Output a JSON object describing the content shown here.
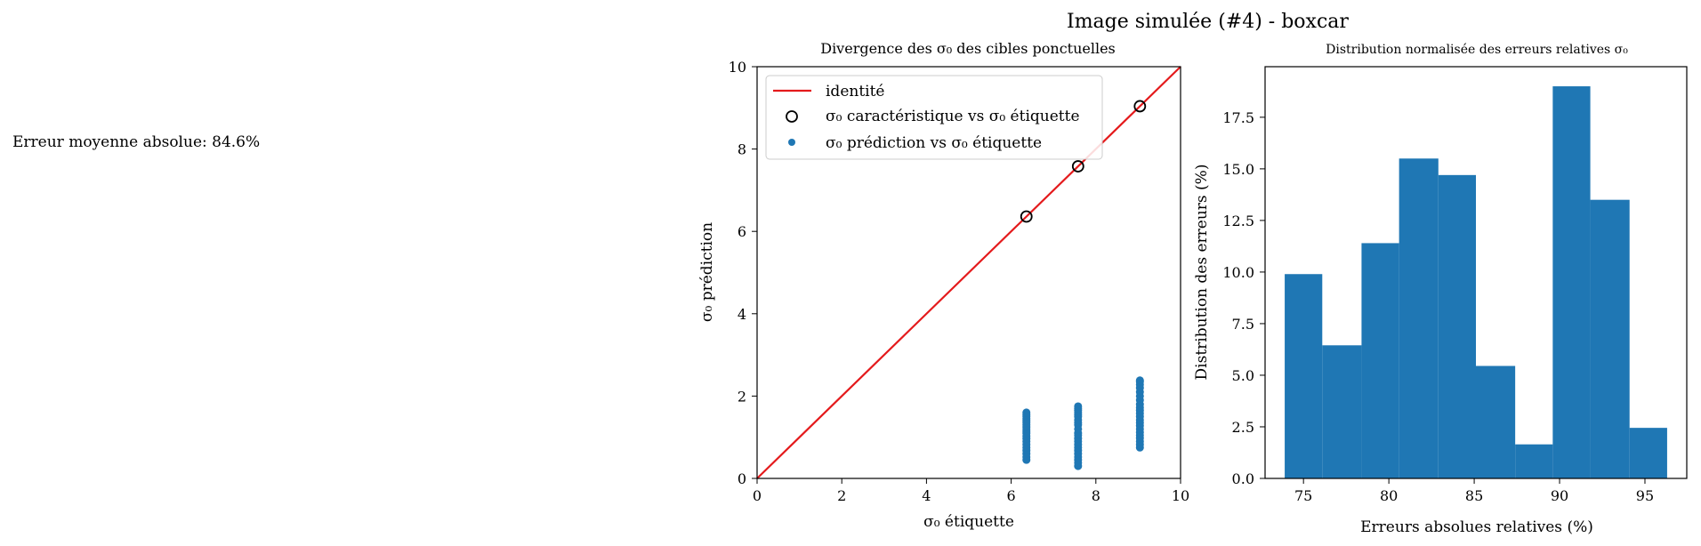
{
  "figure": {
    "suptitle": "Image simulée (#4) - boxcar",
    "mean_abs_error": "Erreur moyenne absolue: 84.6%"
  },
  "chart_data": [
    {
      "type": "scatter",
      "title": "Divergence des σ₀ des cibles ponctuelles",
      "xlabel": "σ₀ étiquette",
      "ylabel": "σ₀ prédiction",
      "xlim": [
        0,
        10
      ],
      "ylim": [
        0,
        10
      ],
      "xticks": [
        "0",
        "2",
        "4",
        "6",
        "8",
        "10"
      ],
      "yticks": [
        "0",
        "2",
        "4",
        "6",
        "8",
        "10"
      ],
      "legend_position": "top-left",
      "identity": {
        "name": "identité",
        "color": "#e41a1c",
        "x": [
          0,
          10
        ],
        "y": [
          0,
          10
        ]
      },
      "characteristic": {
        "name": "σ₀ caractéristique vs σ₀ étiquette",
        "x": [
          6.36,
          7.58,
          9.04
        ],
        "y": [
          6.36,
          7.58,
          9.04
        ]
      },
      "prediction": {
        "name": "σ₀ prédiction vs σ₀ étiquette",
        "color": "#1f77b4",
        "x": [
          6.36,
          6.36,
          6.36,
          6.36,
          6.36,
          6.36,
          6.36,
          6.36,
          6.36,
          6.36,
          6.36,
          6.36,
          6.36,
          6.36,
          6.36,
          6.36,
          6.36,
          6.36,
          6.36,
          6.36,
          7.58,
          7.58,
          7.58,
          7.58,
          7.58,
          7.58,
          7.58,
          7.58,
          7.58,
          7.58,
          7.58,
          7.58,
          7.58,
          7.58,
          7.58,
          7.58,
          7.58,
          7.58,
          7.58,
          7.58,
          7.58,
          7.58,
          9.04,
          9.04,
          9.04,
          9.04,
          9.04,
          9.04,
          9.04,
          9.04,
          9.04,
          9.04,
          9.04,
          9.04,
          9.04,
          9.04,
          9.04,
          9.04,
          9.04,
          9.04,
          9.04,
          9.04,
          9.04,
          9.04
        ],
        "y": [
          0.45,
          0.52,
          0.6,
          0.68,
          0.75,
          0.82,
          0.9,
          0.97,
          1.03,
          1.1,
          1.15,
          1.2,
          1.25,
          1.3,
          1.35,
          1.4,
          1.45,
          1.5,
          1.55,
          1.6,
          0.3,
          0.38,
          0.45,
          0.52,
          0.6,
          0.68,
          0.75,
          0.82,
          0.9,
          0.97,
          1.05,
          1.1,
          1.2,
          1.3,
          1.35,
          1.42,
          1.5,
          1.55,
          1.6,
          1.65,
          1.7,
          1.75,
          0.75,
          0.82,
          0.9,
          0.98,
          1.05,
          1.12,
          1.2,
          1.28,
          1.35,
          1.42,
          1.5,
          1.58,
          1.65,
          1.72,
          1.8,
          1.9,
          2.0,
          2.1,
          2.2,
          2.28,
          2.35,
          2.38
        ]
      }
    },
    {
      "type": "bar",
      "title": "Distribution normalisée des erreurs relatives σ₀",
      "xlabel": "Erreurs absolues relatives (%)",
      "ylabel": "Distribution des erreurs (%)",
      "bin_edges": [
        73.9,
        76.1,
        78.4,
        80.6,
        82.9,
        85.1,
        87.4,
        89.6,
        91.8,
        94.1,
        96.3
      ],
      "values": [
        9.9,
        6.45,
        11.4,
        15.5,
        14.7,
        5.45,
        1.65,
        19.0,
        13.5,
        2.45
      ],
      "color": "#1f77b4",
      "xlim": [
        72.75,
        97.45
      ],
      "ylim": [
        0,
        19.95
      ],
      "xticks": [
        75,
        80,
        85,
        90,
        95
      ],
      "yticks": [
        "0.0",
        "2.5",
        "5.0",
        "7.5",
        "10.0",
        "12.5",
        "15.0",
        "17.5"
      ]
    }
  ]
}
